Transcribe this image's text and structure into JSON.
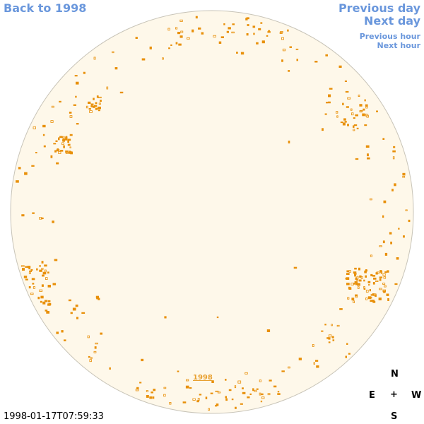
{
  "nav": {
    "back_label": "Back to 1998",
    "previous_day_label": "Previous day",
    "next_day_label": "Next day",
    "previous_hour_label": "Previous hour",
    "next_hour_label": "Next hour"
  },
  "timestamp": "1998-01-17T07:59:33",
  "year_label": "1998",
  "compass": {
    "north": "N",
    "east": "E",
    "center": "+",
    "west": "W",
    "south": "S"
  },
  "colors": {
    "disk_fill": "#fef8ea",
    "disk_stroke": "#c8c4b8",
    "feature": "#e8900a",
    "link": "#6a97dc"
  }
}
